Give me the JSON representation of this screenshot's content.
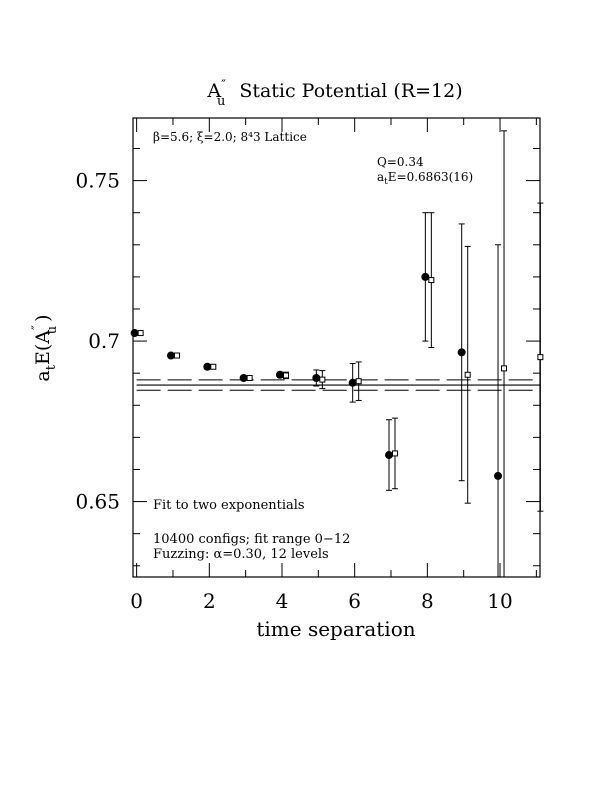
{
  "chart_data": {
    "type": "scatter",
    "title": {
      "main": "A",
      "main_sup": "″",
      "main_sub": "u",
      "rest": "Static Potential (R=12)"
    },
    "xlabel": "time separation",
    "ylabel": {
      "pre": "a",
      "pre_sub": "t",
      "mid": "E(A",
      "mid_sup": "″",
      "mid_sub": "u",
      "post": ")"
    },
    "xlim": [
      -0.1,
      11.1
    ],
    "ylim": [
      0.6265,
      0.7695
    ],
    "x_ticks": [
      {
        "value": 0,
        "label": "0"
      },
      {
        "value": 2,
        "label": "2"
      },
      {
        "value": 4,
        "label": "4"
      },
      {
        "value": 6,
        "label": "6"
      },
      {
        "value": 8,
        "label": "8"
      },
      {
        "value": 10,
        "label": "10"
      }
    ],
    "y_ticks": [
      {
        "value": 0.65,
        "label": "0.65"
      },
      {
        "value": 0.7,
        "label": "0.7"
      },
      {
        "value": 0.75,
        "label": "0.75"
      }
    ],
    "annotations": {
      "params": "β=5.6; ξ=2.0; 8⁴3 Lattice",
      "q": "Q=0.34",
      "energy_pre": "a",
      "energy_sub": "t",
      "energy_post": "E=0.6863(16)",
      "fit": "Fit to two exponentials",
      "configs": "10400 configs; fit range 0−12",
      "fuzzing": "Fuzzing: α=0.30, 12 levels"
    },
    "series": [
      {
        "marker": "filled-circle",
        "points": [
          {
            "x": 0,
            "y": 0.7025,
            "err": 0.0
          },
          {
            "x": 1,
            "y": 0.6955,
            "err": 0.0
          },
          {
            "x": 2,
            "y": 0.692,
            "err": 0.0
          },
          {
            "x": 3,
            "y": 0.6885,
            "err": 0.0
          },
          {
            "x": 4,
            "y": 0.6895,
            "err": 0.0008
          },
          {
            "x": 5,
            "y": 0.6885,
            "err": 0.0025
          },
          {
            "x": 6,
            "y": 0.687,
            "err": 0.006
          },
          {
            "x": 7,
            "y": 0.6645,
            "err": 0.011
          },
          {
            "x": 8,
            "y": 0.72,
            "err": 0.02
          },
          {
            "x": 9,
            "y": 0.6965,
            "err": 0.04
          },
          {
            "x": 10,
            "y": 0.658,
            "err": 0.072
          }
        ]
      },
      {
        "marker": "open-square",
        "points": [
          {
            "x": 0,
            "y": 0.7025,
            "err": 0.0
          },
          {
            "x": 1,
            "y": 0.6955,
            "err": 0.0
          },
          {
            "x": 2,
            "y": 0.692,
            "err": 0.0
          },
          {
            "x": 3,
            "y": 0.6885,
            "err": 0.0
          },
          {
            "x": 4,
            "y": 0.6893,
            "err": 0.001
          },
          {
            "x": 5,
            "y": 0.688,
            "err": 0.0028
          },
          {
            "x": 6,
            "y": 0.6875,
            "err": 0.006
          },
          {
            "x": 7,
            "y": 0.665,
            "err": 0.011
          },
          {
            "x": 8,
            "y": 0.719,
            "err": 0.021
          },
          {
            "x": 9,
            "y": 0.6895,
            "err": 0.04
          },
          {
            "x": 10,
            "y": 0.6915,
            "err": 0.074
          },
          {
            "x": 11,
            "y": 0.695,
            "err": 0.048
          }
        ]
      }
    ],
    "fit": {
      "value": 0.6863,
      "error": 0.0016,
      "x_range": [
        0,
        11.1
      ]
    }
  }
}
